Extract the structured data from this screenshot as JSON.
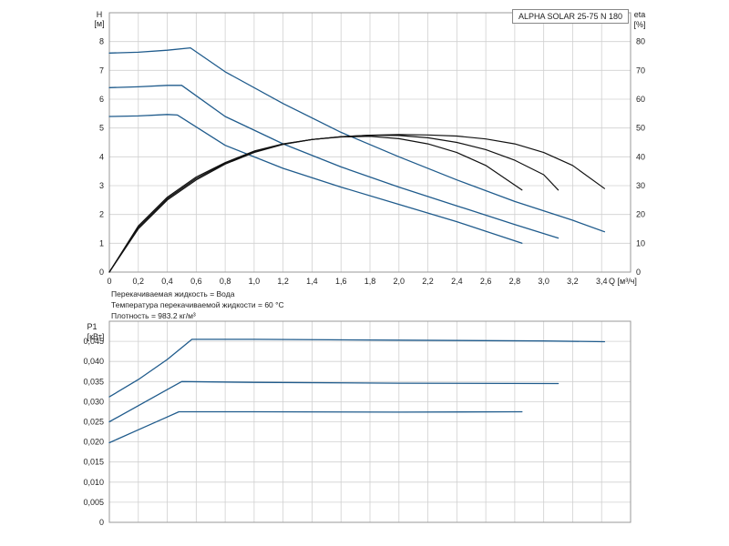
{
  "model_label": "ALPHA SOLAR 25-75 N 180",
  "notes": {
    "fluid": "Перекачиваемая жидкость = Вода",
    "temperature": "Температура перекачиваемой жидкости = 60 °C",
    "density": "Плотность = 983.2 кг/м³"
  },
  "colors": {
    "head": "#1f5b8c",
    "efficiency": "#111111",
    "power": "#1f5b8c",
    "grid": "#d0d0d0",
    "frame": "#999999"
  },
  "chart_data": [
    {
      "type": "line",
      "title": "",
      "xlabel": "Q [м³/ч]",
      "ylabel": "H\n[м]",
      "y2label": "eta\n[%]",
      "xlim": [
        0,
        3.6
      ],
      "ylim": [
        0,
        9
      ],
      "y2lim": [
        0,
        90
      ],
      "x_ticks": [
        "0",
        "0,2",
        "0,4",
        "0,6",
        "0,8",
        "1,0",
        "1,2",
        "1,4",
        "1,6",
        "1,8",
        "2,0",
        "2,2",
        "2,4",
        "2,6",
        "2,8",
        "3,0",
        "3,2",
        "3,4"
      ],
      "y_ticks": [
        "0",
        "1",
        "2",
        "3",
        "4",
        "5",
        "6",
        "7",
        "8"
      ],
      "y2_ticks": [
        "0",
        "10",
        "20",
        "30",
        "40",
        "50",
        "60",
        "70",
        "80"
      ],
      "grid": true,
      "series": [
        {
          "kind": "head",
          "x": [
            0,
            0.2,
            0.4,
            0.56,
            0.8,
            1.2,
            1.6,
            2.0,
            2.4,
            2.8,
            3.2,
            3.42
          ],
          "y": [
            7.6,
            7.63,
            7.7,
            7.78,
            6.95,
            5.85,
            4.85,
            4.0,
            3.2,
            2.45,
            1.8,
            1.4
          ]
        },
        {
          "kind": "head",
          "x": [
            0,
            0.2,
            0.4,
            0.5,
            0.8,
            1.2,
            1.6,
            2.0,
            2.4,
            2.8,
            3.1
          ],
          "y": [
            6.4,
            6.43,
            6.48,
            6.48,
            5.4,
            4.45,
            3.65,
            2.95,
            2.3,
            1.65,
            1.18
          ]
        },
        {
          "kind": "head",
          "x": [
            0,
            0.2,
            0.4,
            0.47,
            0.8,
            1.2,
            1.6,
            2.0,
            2.4,
            2.85
          ],
          "y": [
            5.4,
            5.42,
            5.47,
            5.45,
            4.4,
            3.6,
            2.95,
            2.35,
            1.75,
            1.0
          ]
        },
        {
          "kind": "efficiency",
          "x": [
            0,
            0.2,
            0.4,
            0.6,
            0.8,
            1.0,
            1.2,
            1.4,
            1.6,
            1.8,
            2.0,
            2.2,
            2.4,
            2.6,
            2.8,
            3.0,
            3.2,
            3.42
          ],
          "y": [
            0,
            16,
            26,
            33,
            38,
            42,
            44.5,
            46,
            47,
            47.5,
            47.7,
            47.6,
            47.2,
            46.2,
            44.5,
            41.5,
            37,
            29
          ]
        },
        {
          "kind": "efficiency",
          "x": [
            0,
            0.2,
            0.4,
            0.6,
            0.8,
            1.0,
            1.2,
            1.4,
            1.6,
            1.8,
            2.0,
            2.2,
            2.4,
            2.6,
            2.8,
            3.0,
            3.1
          ],
          "y": [
            0,
            15.5,
            25.5,
            32.5,
            37.8,
            41.8,
            44.4,
            46,
            47,
            47.5,
            47.4,
            46.6,
            45,
            42.5,
            38.8,
            33.8,
            28.5
          ]
        },
        {
          "kind": "efficiency",
          "x": [
            0,
            0.2,
            0.4,
            0.6,
            0.8,
            1.0,
            1.2,
            1.4,
            1.6,
            1.8,
            2.0,
            2.2,
            2.4,
            2.6,
            2.85
          ],
          "y": [
            0,
            15,
            25,
            32,
            37.5,
            41.5,
            44.3,
            46,
            46.9,
            47.1,
            46.3,
            44.5,
            41.5,
            37,
            28.5
          ]
        }
      ]
    },
    {
      "type": "line",
      "title": "",
      "xlabel": "",
      "ylabel": "P1\n[кВт]",
      "xlim": [
        0,
        3.6
      ],
      "ylim": [
        0,
        0.05
      ],
      "y_ticks": [
        "0",
        "0,005",
        "0,010",
        "0,015",
        "0,020",
        "0,025",
        "0,030",
        "0,035",
        "0,040",
        "0,045"
      ],
      "grid": true,
      "series": [
        {
          "kind": "power",
          "x": [
            0,
            0.2,
            0.4,
            0.57,
            1.0,
            2.0,
            3.0,
            3.42
          ],
          "y": [
            0.0312,
            0.0355,
            0.0405,
            0.0455,
            0.0455,
            0.0453,
            0.0451,
            0.0449
          ]
        },
        {
          "kind": "power",
          "x": [
            0,
            0.2,
            0.4,
            0.5,
            1.0,
            2.0,
            3.1
          ],
          "y": [
            0.025,
            0.029,
            0.033,
            0.035,
            0.0348,
            0.0346,
            0.0345
          ]
        },
        {
          "kind": "power",
          "x": [
            0,
            0.2,
            0.4,
            0.48,
            1.0,
            2.0,
            2.85
          ],
          "y": [
            0.0198,
            0.023,
            0.0262,
            0.0275,
            0.0275,
            0.0274,
            0.0275
          ]
        }
      ]
    }
  ]
}
